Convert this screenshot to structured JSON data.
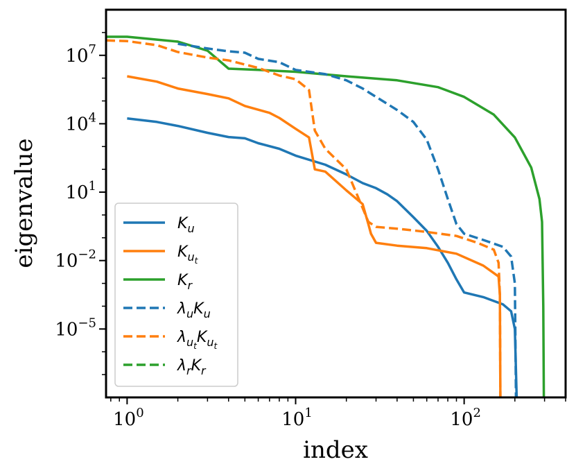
{
  "chart_data": {
    "type": "line",
    "xscale": "log",
    "yscale": "log",
    "xlabel": "index",
    "ylabel": "eigenvalue",
    "xlim": [
      0.75,
      400
    ],
    "ylim": [
      1e-08,
      1000000000.0
    ],
    "xticks": [
      {
        "value": 1,
        "base": "10",
        "exp": "0"
      },
      {
        "value": 10,
        "base": "10",
        "exp": "1"
      },
      {
        "value": 100,
        "base": "10",
        "exp": "2"
      }
    ],
    "yticks": [
      {
        "value": 1e-05,
        "base": "10",
        "exp": "−5"
      },
      {
        "value": 0.01,
        "base": "10",
        "exp": "−2"
      },
      {
        "value": 10,
        "base": "10",
        "exp": "1"
      },
      {
        "value": 10000.0,
        "base": "10",
        "exp": "4"
      },
      {
        "value": 10000000.0,
        "base": "10",
        "exp": "7"
      }
    ],
    "legend_position": "lower-left",
    "series": [
      {
        "key": "Ku",
        "legend": {
          "base": "K",
          "sub": "u",
          "subsub": ""
        },
        "color": "#1f77b4",
        "style": "solid",
        "points": [
          [
            1,
            17000.0
          ],
          [
            1.5,
            12000.0
          ],
          [
            2,
            8000.0
          ],
          [
            3,
            4000.0
          ],
          [
            4,
            2600.0
          ],
          [
            5,
            2300.0
          ],
          [
            6,
            1400.0
          ],
          [
            8,
            800.0
          ],
          [
            10,
            400.0
          ],
          [
            15,
            160.0
          ],
          [
            20,
            60.0
          ],
          [
            25,
            25.0
          ],
          [
            30,
            15.0
          ],
          [
            35,
            8
          ],
          [
            40,
            4
          ],
          [
            50,
            0.8
          ],
          [
            60,
            0.2
          ],
          [
            70,
            0.04
          ],
          [
            80,
            0.008
          ],
          [
            90,
            0.0015
          ],
          [
            100,
            0.0004
          ],
          [
            130,
            0.00025
          ],
          [
            170,
            0.00012
          ],
          [
            190,
            6e-05
          ],
          [
            200,
            1e-05
          ],
          [
            205,
            1e-08
          ]
        ]
      },
      {
        "key": "Kut",
        "legend": {
          "base": "K",
          "sub": "u",
          "subsub": "t"
        },
        "color": "#ff7f0e",
        "style": "solid",
        "points": [
          [
            1,
            1200000.0
          ],
          [
            1.5,
            700000.0
          ],
          [
            2,
            350000.0
          ],
          [
            3,
            200000.0
          ],
          [
            4,
            130000.0
          ],
          [
            5,
            60000.0
          ],
          [
            7,
            30000.0
          ],
          [
            8,
            18000.0
          ],
          [
            10,
            6000.0
          ],
          [
            12,
            2500.0
          ],
          [
            13,
            100.0
          ],
          [
            15,
            80.0
          ],
          [
            20,
            12.0
          ],
          [
            25,
            3
          ],
          [
            27,
            0.4
          ],
          [
            28,
            0.15
          ],
          [
            30,
            0.06
          ],
          [
            40,
            0.045
          ],
          [
            60,
            0.035
          ],
          [
            90,
            0.02
          ],
          [
            130,
            0.006
          ],
          [
            160,
            0.002
          ],
          [
            163,
            0.0003
          ],
          [
            164,
            1e-08
          ]
        ]
      },
      {
        "key": "Kr",
        "legend": {
          "base": "K",
          "sub": "r",
          "subsub": ""
        },
        "color": "#2ca02c",
        "style": "solid",
        "points": [
          [
            0.75,
            65000000.0
          ],
          [
            1,
            65000000.0
          ],
          [
            2,
            40000000.0
          ],
          [
            3,
            16000000.0
          ],
          [
            4,
            2600000.0
          ],
          [
            6,
            2300000.0
          ],
          [
            10,
            1900000.0
          ],
          [
            20,
            1200000.0
          ],
          [
            40,
            800000.0
          ],
          [
            70,
            400000.0
          ],
          [
            100,
            150000.0
          ],
          [
            150,
            25000.0
          ],
          [
            200,
            2500.0
          ],
          [
            250,
            120.0
          ],
          [
            280,
            5
          ],
          [
            290,
            0.5
          ],
          [
            295,
            0.0001
          ],
          [
            297,
            1e-08
          ]
        ]
      },
      {
        "key": "luKu",
        "legend": {
          "base": "λ",
          "sub": "u",
          "subsub": "",
          "base2": "K",
          "sub2": "u",
          "subsub2": ""
        },
        "color": "#1f77b4",
        "style": "dashed",
        "points": [
          [
            2,
            32000000.0
          ],
          [
            3,
            20000000.0
          ],
          [
            4,
            15000000.0
          ],
          [
            5,
            13000000.0
          ],
          [
            6,
            7000000.0
          ],
          [
            8,
            5000000.0
          ],
          [
            10,
            2300000.0
          ],
          [
            15,
            1500000.0
          ],
          [
            20,
            800000.0
          ],
          [
            25,
            350000.0
          ],
          [
            30,
            150000.0
          ],
          [
            40,
            40000.0
          ],
          [
            50,
            12000.0
          ],
          [
            60,
            2000.0
          ],
          [
            70,
            100.0
          ],
          [
            80,
            5
          ],
          [
            90,
            0.4
          ],
          [
            100,
            0.15
          ],
          [
            130,
            0.08
          ],
          [
            170,
            0.04
          ],
          [
            190,
            0.015
          ],
          [
            200,
            0.001
          ],
          [
            203,
            1e-08
          ]
        ]
      },
      {
        "key": "lutKut",
        "legend": {
          "base": "λ",
          "sub": "u",
          "subsub": "t",
          "base2": "K",
          "sub2": "u",
          "subsub2": "t"
        },
        "color": "#ff7f0e",
        "style": "dashed",
        "points": [
          [
            0.75,
            45000000.0
          ],
          [
            1,
            42000000.0
          ],
          [
            1.5,
            28000000.0
          ],
          [
            2,
            14000000.0
          ],
          [
            3,
            8000000.0
          ],
          [
            4,
            6000000.0
          ],
          [
            6,
            2800000.0
          ],
          [
            8,
            1300000.0
          ],
          [
            10,
            900000.0
          ],
          [
            12,
            300000.0
          ],
          [
            13,
            5000.0
          ],
          [
            15,
            800.0
          ],
          [
            20,
            100.0
          ],
          [
            25,
            2
          ],
          [
            27,
            0.5
          ],
          [
            30,
            0.3
          ],
          [
            40,
            0.25
          ],
          [
            60,
            0.18
          ],
          [
            90,
            0.12
          ],
          [
            120,
            0.06
          ],
          [
            150,
            0.03
          ],
          [
            160,
            0.008
          ],
          [
            163,
            0.0003
          ],
          [
            164,
            1e-08
          ]
        ]
      },
      {
        "key": "lrKr",
        "legend": {
          "base": "λ",
          "sub": "r",
          "subsub": "",
          "base2": "K",
          "sub2": "r",
          "subsub2": ""
        },
        "color": "#2ca02c",
        "style": "dashed",
        "points": []
      }
    ]
  }
}
